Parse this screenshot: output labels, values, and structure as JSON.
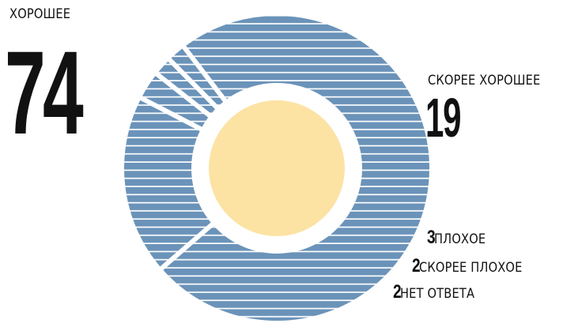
{
  "chart_data": {
    "type": "pie",
    "slices": [
      {
        "label": "ХОРОШЕЕ",
        "value": 74
      },
      {
        "label": "СКОРЕЕ ХОРОШЕЕ",
        "value": 19
      },
      {
        "label": "ПЛОХОЕ",
        "value": 3
      },
      {
        "label": "СКОРЕЕ ПЛОХОЕ",
        "value": 2
      },
      {
        "label": "НЕТ ОТВЕТА",
        "value": 2
      }
    ]
  },
  "colors": {
    "slice": "#6b93b9",
    "stripe": "#ffffff",
    "center": "#fce3a3",
    "text": "#111111"
  }
}
